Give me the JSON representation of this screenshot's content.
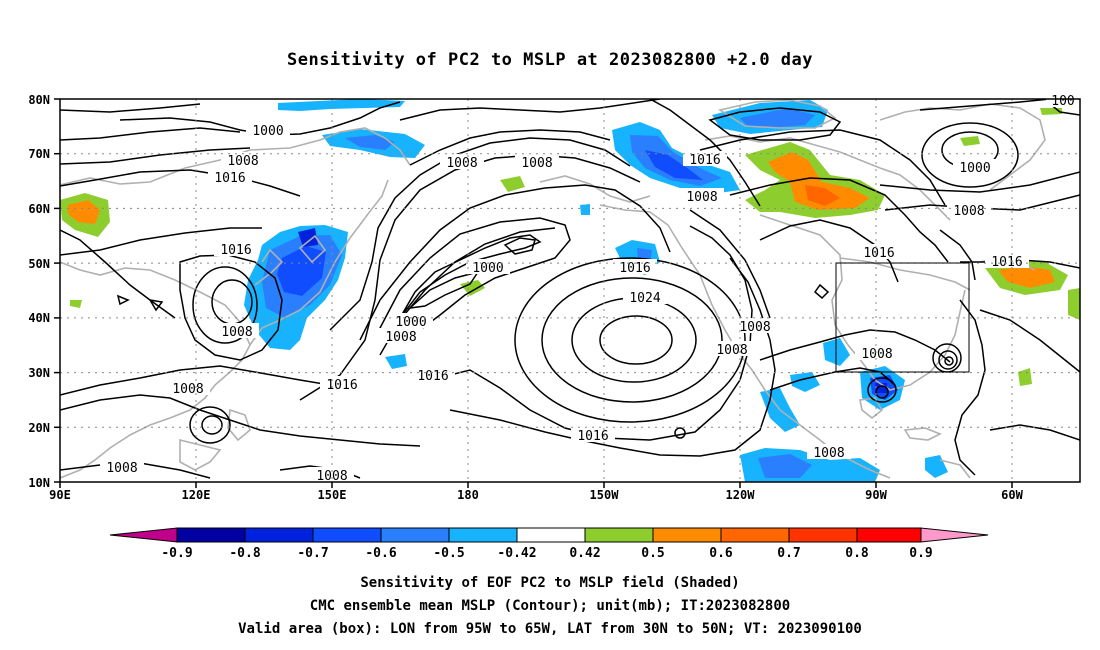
{
  "title": "Sensitivity of PC2 to MSLP at 2023082800 +2.0 day",
  "lat_labels": [
    "80N",
    "70N",
    "60N",
    "50N",
    "40N",
    "30N",
    "20N",
    "10N"
  ],
  "lon_labels": [
    "90E",
    "120E",
    "150E",
    "180",
    "150W",
    "120W",
    "90W",
    "60W"
  ],
  "contour_labels": [
    "1000",
    "1008",
    "1016",
    "1016",
    "1016",
    "1008",
    "1008",
    "1008",
    "1008",
    "1016",
    "1008",
    "1008",
    "1016",
    "1016",
    "1000",
    "1008",
    "1024",
    "1008",
    "1008",
    "1016",
    "1000",
    "1008",
    "1008",
    "1008",
    "1016",
    "1016",
    "1000",
    "1008",
    "1016",
    "1008",
    "1008",
    "1008",
    "1016",
    "1008",
    "100"
  ],
  "colorbar": {
    "labels": [
      "-0.9",
      "-0.8",
      "-0.7",
      "-0.6",
      "-0.5",
      "-0.42",
      "0.42",
      "0.5",
      "0.6",
      "0.7",
      "0.8",
      "0.9"
    ],
    "colors": [
      "#0000a0",
      "#0022dd",
      "#0f4dff",
      "#2a7fff",
      "#17b3ff",
      "#ffffff",
      "#8ecd2e",
      "#ff8c00",
      "#ff6600",
      "#ff3300",
      "#ff0000"
    ],
    "low_end_color": "#c0008a",
    "high_end_color": "#ff99cc"
  },
  "captions": [
    "Sensitivity of EOF PC2 to MSLP field (Shaded)",
    "CMC ensemble mean MSLP (Contour); unit(mb); IT:2023082800",
    "Valid area (box): LON from 95W to 65W, LAT from 30N to 50N; VT: 2023090100"
  ]
}
